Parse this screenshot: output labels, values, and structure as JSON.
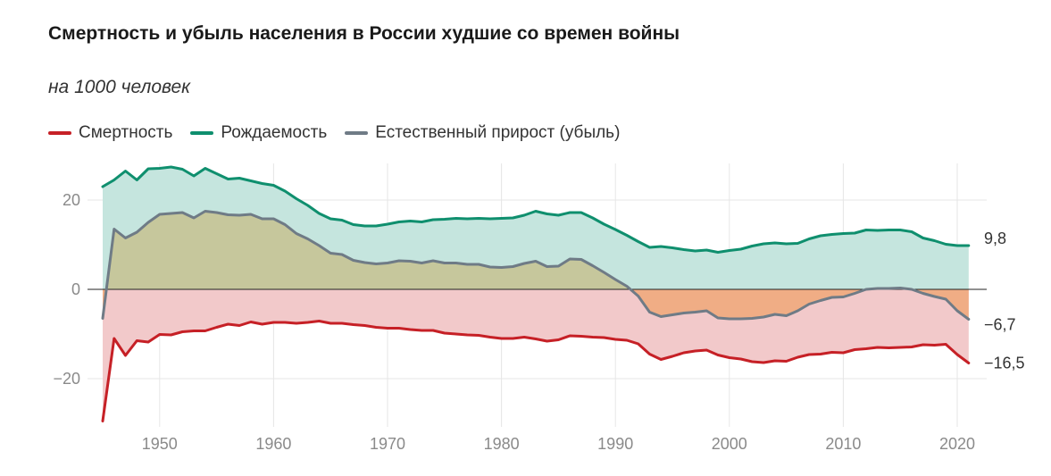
{
  "header": {
    "title": "Смертность и убыль населения в России худшие со времен войны",
    "subtitle": "на 1000 человек"
  },
  "legend": [
    {
      "label": "Смертность",
      "color": "#c62026"
    },
    {
      "label": "Рождаемость",
      "color": "#0f8f6e"
    },
    {
      "label": "Естественный прирост (убыль)",
      "color": "#6f7b86"
    }
  ],
  "chart_data": {
    "type": "area",
    "x_ticks": [
      1950,
      1960,
      1970,
      1980,
      1990,
      2000,
      2010,
      2020
    ],
    "y_ticks": [
      {
        "value": 20,
        "label": "20"
      },
      {
        "value": 0,
        "label": "0"
      },
      {
        "value": -20,
        "label": "−20"
      }
    ],
    "xlim": [
      1945,
      2022
    ],
    "ylim": [
      -30,
      28
    ],
    "grid": true,
    "legend_position": "top-left",
    "x": [
      1945,
      1946,
      1947,
      1948,
      1949,
      1950,
      1951,
      1952,
      1953,
      1954,
      1955,
      1956,
      1957,
      1958,
      1959,
      1960,
      1961,
      1962,
      1963,
      1964,
      1965,
      1966,
      1967,
      1968,
      1969,
      1970,
      1971,
      1972,
      1973,
      1974,
      1975,
      1976,
      1977,
      1978,
      1979,
      1980,
      1981,
      1982,
      1983,
      1984,
      1985,
      1986,
      1987,
      1988,
      1989,
      1990,
      1991,
      1992,
      1993,
      1994,
      1995,
      1996,
      1997,
      1998,
      1999,
      2000,
      2001,
      2002,
      2003,
      2004,
      2005,
      2006,
      2007,
      2008,
      2009,
      2010,
      2011,
      2012,
      2013,
      2014,
      2015,
      2016,
      2017,
      2018,
      2019,
      2020,
      2021
    ],
    "series": [
      {
        "name": "Рождаемость",
        "color": "#0f8f6e",
        "values": [
          23.0,
          24.5,
          26.5,
          24.5,
          27.0,
          27.1,
          27.4,
          26.9,
          25.4,
          27.1,
          25.9,
          24.7,
          24.9,
          24.3,
          23.7,
          23.3,
          22.0,
          20.3,
          18.8,
          17.0,
          15.8,
          15.5,
          14.5,
          14.2,
          14.2,
          14.6,
          15.1,
          15.3,
          15.1,
          15.6,
          15.7,
          15.9,
          15.8,
          15.9,
          15.8,
          15.9,
          16.0,
          16.6,
          17.5,
          16.9,
          16.6,
          17.2,
          17.2,
          16.0,
          14.6,
          13.4,
          12.1,
          10.7,
          9.4,
          9.6,
          9.3,
          8.9,
          8.6,
          8.8,
          8.3,
          8.7,
          9.0,
          9.7,
          10.2,
          10.4,
          10.2,
          10.3,
          11.3,
          12.0,
          12.3,
          12.5,
          12.6,
          13.3,
          13.2,
          13.3,
          13.3,
          12.9,
          11.5,
          10.9,
          10.1,
          9.8,
          9.8
        ]
      },
      {
        "name": "Смертность",
        "color": "#c62026",
        "values": [
          -29.5,
          -11.0,
          -14.8,
          -11.5,
          -11.8,
          -10.1,
          -10.2,
          -9.5,
          -9.3,
          -9.3,
          -8.5,
          -7.8,
          -8.1,
          -7.3,
          -7.8,
          -7.4,
          -7.4,
          -7.6,
          -7.4,
          -7.1,
          -7.6,
          -7.6,
          -7.9,
          -8.1,
          -8.5,
          -8.7,
          -8.7,
          -9.0,
          -9.2,
          -9.2,
          -9.8,
          -10.0,
          -10.2,
          -10.3,
          -10.7,
          -11.0,
          -11.0,
          -10.7,
          -11.1,
          -11.6,
          -11.3,
          -10.4,
          -10.5,
          -10.7,
          -10.8,
          -11.2,
          -11.4,
          -12.2,
          -14.5,
          -15.7,
          -15.0,
          -14.2,
          -13.8,
          -13.6,
          -14.7,
          -15.3,
          -15.6,
          -16.2,
          -16.4,
          -16.0,
          -16.1,
          -15.2,
          -14.6,
          -14.5,
          -14.1,
          -14.2,
          -13.5,
          -13.3,
          -13.0,
          -13.1,
          -13.0,
          -12.9,
          -12.4,
          -12.5,
          -12.3,
          -14.6,
          -16.5
        ]
      },
      {
        "name": "Естественный прирост (убыль)",
        "color": "#6f7b86",
        "values": [
          -6.5,
          13.5,
          11.5,
          12.8,
          15.0,
          16.8,
          17.0,
          17.2,
          16.0,
          17.5,
          17.2,
          16.7,
          16.6,
          16.8,
          15.8,
          15.8,
          14.5,
          12.5,
          11.3,
          9.8,
          8.1,
          7.8,
          6.5,
          6.0,
          5.7,
          5.9,
          6.4,
          6.3,
          5.9,
          6.4,
          5.9,
          5.9,
          5.6,
          5.6,
          5.0,
          4.9,
          5.1,
          5.8,
          6.3,
          5.1,
          5.2,
          6.8,
          6.7,
          5.3,
          3.8,
          2.2,
          0.7,
          -1.5,
          -5.1,
          -6.1,
          -5.7,
          -5.3,
          -5.1,
          -4.8,
          -6.4,
          -6.6,
          -6.6,
          -6.5,
          -6.2,
          -5.6,
          -5.9,
          -4.8,
          -3.3,
          -2.5,
          -1.8,
          -1.7,
          -0.9,
          0.0,
          0.2,
          0.2,
          0.3,
          0.0,
          -0.9,
          -1.6,
          -2.2,
          -4.8,
          -6.7
        ]
      }
    ],
    "end_labels": [
      "9,8",
      "−6,7",
      "−16,5"
    ]
  }
}
